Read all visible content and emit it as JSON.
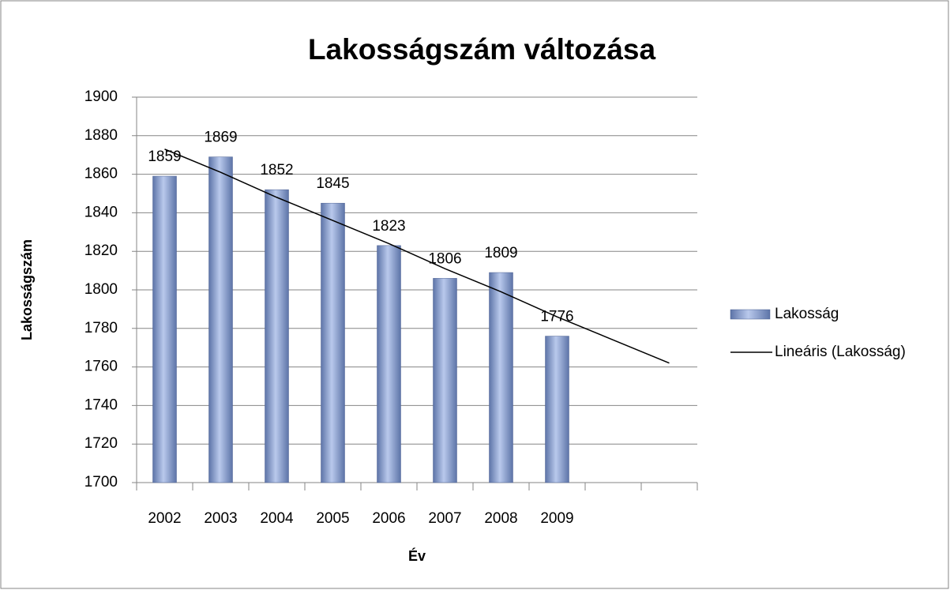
{
  "chart_data": {
    "type": "bar",
    "title": "Lakosságszám változása",
    "x_label": "Év",
    "y_label": "Lakosságszám",
    "categories": [
      "2002",
      "2003",
      "2004",
      "2005",
      "2006",
      "2007",
      "2008",
      "2009",
      null,
      null
    ],
    "series": [
      {
        "name": "Lakosság",
        "color": "#8ea3d1",
        "values": [
          1859,
          1869,
          1852,
          1845,
          1823,
          1806,
          1809,
          1776,
          null,
          null
        ]
      },
      {
        "name": "Lineáris (Lakosság)",
        "color": "#000000",
        "type": "line",
        "values": [
          1873,
          1861,
          1848,
          1836,
          1824,
          1811,
          1799,
          1786,
          1774,
          1762
        ]
      }
    ],
    "ylim": [
      1700,
      1900
    ],
    "yticks": [
      1700,
      1720,
      1740,
      1760,
      1780,
      1800,
      1820,
      1840,
      1860,
      1880,
      1900
    ],
    "grid": true,
    "legend": "right"
  }
}
